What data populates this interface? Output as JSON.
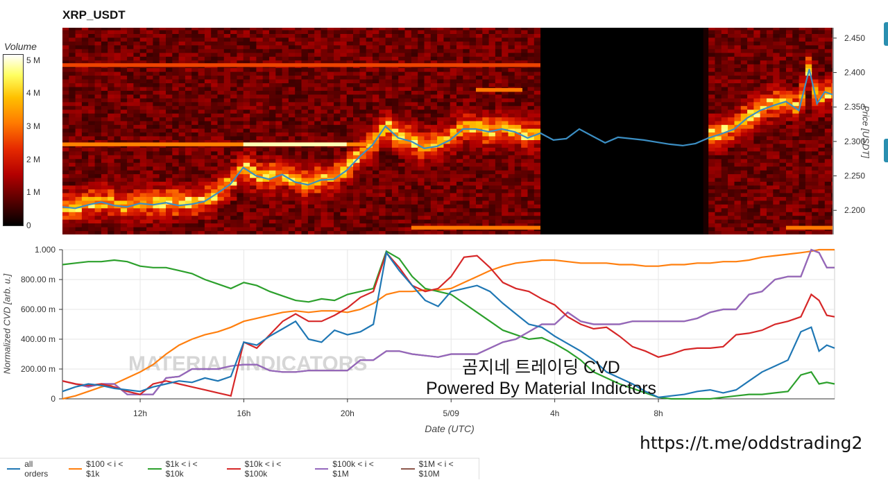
{
  "title": "XRP_USDT",
  "colorbar": {
    "title": "Volume",
    "ticks": [
      "5 M",
      "4 M",
      "3 M",
      "2 M",
      "1 M",
      "0"
    ],
    "tick_values": [
      5,
      4,
      3,
      2,
      1,
      0
    ]
  },
  "price_axis": {
    "label": "Price [USDT]",
    "ticks": [
      "2.200",
      "2.250",
      "2.300",
      "2.350",
      "2.400",
      "2.450"
    ]
  },
  "cvd_axis": {
    "label": "Normalized CVD [arb. u.]",
    "ticks": [
      "0",
      "200.00 m",
      "400.00 m",
      "600.00 m",
      "800.00 m",
      "1.000"
    ]
  },
  "x_axis": {
    "label": "Date (UTC)",
    "ticks": [
      "12h",
      "16h",
      "20h",
      "5/09",
      "4h",
      "8h"
    ]
  },
  "overlay": {
    "line1": "곰지네 트레이딩 CVD",
    "line2": "Powered By Material Indictors"
  },
  "url": "https://t.me/oddstrading2",
  "watermark": "MATERIAL INDICATORS",
  "legend": [
    {
      "label": "all orders",
      "color": "#1f77b4"
    },
    {
      "label": "$100 < i < $1k",
      "color": "#ff7f0e"
    },
    {
      "label": "$1k < i < $10k",
      "color": "#2ca02c"
    },
    {
      "label": "$10k < i < $100k",
      "color": "#d62728"
    },
    {
      "label": "$100k < i < $1M",
      "color": "#9467bd"
    },
    {
      "label": "$1M < i < $10M",
      "color": "#8c564b"
    }
  ],
  "chart_data": [
    {
      "type": "heatmap",
      "title": "XRP_USDT",
      "xlabel": "",
      "ylabel": "Price [USDT]",
      "ylim": [
        2.165,
        2.465
      ],
      "x_range_hours": [
        9.0,
        38.8
      ],
      "colorbar_label": "Volume",
      "colorbar_range": [
        0,
        6000000
      ],
      "price_line": {
        "color": "#3c8fc4",
        "x_hours": [
          9.0,
          9.5,
          10.0,
          10.5,
          11.0,
          11.5,
          12.0,
          12.5,
          13.0,
          13.5,
          14.0,
          14.5,
          15.0,
          15.5,
          16.0,
          16.5,
          17.0,
          17.5,
          18.0,
          18.5,
          19.0,
          19.5,
          20.0,
          20.5,
          21.0,
          21.5,
          22.0,
          22.5,
          23.0,
          23.5,
          24.0,
          24.5,
          25.0,
          25.5,
          26.0,
          26.5,
          27.0,
          27.5,
          28.0,
          28.5,
          29.0,
          29.5,
          30.0,
          30.5,
          31.0,
          31.5,
          32.0,
          32.5,
          33.0,
          33.5,
          34.0,
          34.5,
          35.0,
          35.5,
          36.0,
          36.5,
          37.0,
          37.5,
          37.9,
          38.2,
          38.5,
          38.8
        ],
        "price": [
          2.205,
          2.203,
          2.208,
          2.212,
          2.207,
          2.205,
          2.21,
          2.208,
          2.211,
          2.207,
          2.209,
          2.213,
          2.225,
          2.238,
          2.262,
          2.25,
          2.245,
          2.252,
          2.241,
          2.237,
          2.244,
          2.245,
          2.258,
          2.278,
          2.295,
          2.322,
          2.305,
          2.3,
          2.29,
          2.293,
          2.302,
          2.318,
          2.318,
          2.314,
          2.318,
          2.314,
          2.305,
          2.312,
          2.302,
          2.304,
          2.318,
          2.308,
          2.298,
          2.306,
          2.304,
          2.302,
          2.299,
          2.296,
          2.294,
          2.297,
          2.305,
          2.311,
          2.318,
          2.334,
          2.345,
          2.352,
          2.358,
          2.345,
          2.405,
          2.355,
          2.372,
          2.368
        ]
      },
      "notes": "Volume shown as horizontal price-level bands; blank data gap approx 27.5h-33.8h"
    },
    {
      "type": "line",
      "title": "",
      "xlabel": "Date (UTC)",
      "ylabel": "Normalized CVD [arb. u.]",
      "ylim": [
        0,
        1.0
      ],
      "xlim_hours": [
        9.0,
        38.8
      ],
      "x_tick_labels": [
        "12h",
        "16h",
        "20h",
        "5/09",
        "4h",
        "8h"
      ],
      "x_tick_hours": [
        12,
        16,
        20,
        24,
        28,
        32
      ],
      "x_hours": [
        9.0,
        9.5,
        10.0,
        10.5,
        11.0,
        11.5,
        12.0,
        12.5,
        13.0,
        13.5,
        14.0,
        14.5,
        15.0,
        15.5,
        16.0,
        16.5,
        17.0,
        17.5,
        18.0,
        18.5,
        19.0,
        19.5,
        20.0,
        20.5,
        21.0,
        21.5,
        22.0,
        22.5,
        23.0,
        23.5,
        24.0,
        24.5,
        25.0,
        25.5,
        26.0,
        26.5,
        27.0,
        27.5,
        28.0,
        28.5,
        29.0,
        29.5,
        30.0,
        30.5,
        31.0,
        31.5,
        32.0,
        32.5,
        33.0,
        33.5,
        34.0,
        34.5,
        35.0,
        35.5,
        36.0,
        36.5,
        37.0,
        37.5,
        37.9,
        38.2,
        38.5,
        38.8
      ],
      "series": [
        {
          "name": "all orders",
          "color": "#1f77b4",
          "values": [
            0.05,
            0.08,
            0.1,
            0.09,
            0.07,
            0.06,
            0.05,
            0.08,
            0.1,
            0.12,
            0.11,
            0.14,
            0.12,
            0.15,
            0.38,
            0.36,
            0.42,
            0.47,
            0.52,
            0.4,
            0.38,
            0.46,
            0.43,
            0.45,
            0.5,
            0.98,
            0.86,
            0.76,
            0.66,
            0.62,
            0.72,
            0.74,
            0.76,
            0.72,
            0.64,
            0.57,
            0.5,
            0.48,
            0.42,
            0.37,
            0.32,
            0.26,
            0.18,
            0.14,
            0.1,
            0.05,
            0.01,
            0.02,
            0.03,
            0.05,
            0.06,
            0.04,
            0.06,
            0.12,
            0.18,
            0.22,
            0.26,
            0.45,
            0.48,
            0.32,
            0.36,
            0.34
          ]
        },
        {
          "name": "$100 < i < $1k",
          "color": "#ff7f0e",
          "values": [
            0.0,
            0.02,
            0.05,
            0.08,
            0.1,
            0.14,
            0.18,
            0.23,
            0.3,
            0.36,
            0.4,
            0.43,
            0.45,
            0.48,
            0.52,
            0.54,
            0.56,
            0.58,
            0.59,
            0.58,
            0.59,
            0.59,
            0.58,
            0.6,
            0.64,
            0.7,
            0.72,
            0.72,
            0.73,
            0.73,
            0.74,
            0.78,
            0.82,
            0.86,
            0.89,
            0.91,
            0.92,
            0.93,
            0.93,
            0.92,
            0.91,
            0.91,
            0.91,
            0.9,
            0.9,
            0.89,
            0.89,
            0.9,
            0.9,
            0.91,
            0.91,
            0.92,
            0.92,
            0.93,
            0.95,
            0.96,
            0.97,
            0.98,
            0.99,
            1.0,
            1.0,
            1.0
          ]
        },
        {
          "name": "$1k < i < $10k",
          "color": "#2ca02c",
          "values": [
            0.9,
            0.91,
            0.92,
            0.92,
            0.93,
            0.92,
            0.89,
            0.88,
            0.88,
            0.86,
            0.84,
            0.8,
            0.77,
            0.74,
            0.78,
            0.76,
            0.72,
            0.69,
            0.66,
            0.65,
            0.67,
            0.66,
            0.7,
            0.72,
            0.74,
            0.99,
            0.94,
            0.82,
            0.74,
            0.72,
            0.7,
            0.64,
            0.58,
            0.52,
            0.46,
            0.43,
            0.4,
            0.41,
            0.37,
            0.32,
            0.26,
            0.18,
            0.14,
            0.1,
            0.07,
            0.04,
            0.01,
            0.0,
            0.0,
            0.0,
            0.0,
            0.01,
            0.02,
            0.03,
            0.03,
            0.04,
            0.05,
            0.16,
            0.18,
            0.1,
            0.11,
            0.1
          ]
        },
        {
          "name": "$10k < i < $100k",
          "color": "#d62728",
          "values": [
            0.12,
            0.1,
            0.09,
            0.1,
            0.08,
            0.05,
            0.03,
            0.1,
            0.12,
            0.1,
            0.08,
            0.06,
            0.04,
            0.02,
            0.38,
            0.34,
            0.43,
            0.52,
            0.57,
            0.52,
            0.52,
            0.56,
            0.61,
            0.68,
            0.72,
            0.98,
            0.88,
            0.76,
            0.72,
            0.74,
            0.82,
            0.95,
            0.96,
            0.88,
            0.78,
            0.74,
            0.72,
            0.67,
            0.63,
            0.55,
            0.5,
            0.47,
            0.48,
            0.42,
            0.35,
            0.32,
            0.28,
            0.3,
            0.33,
            0.34,
            0.34,
            0.35,
            0.43,
            0.44,
            0.46,
            0.5,
            0.52,
            0.55,
            0.7,
            0.66,
            0.56,
            0.55
          ]
        },
        {
          "name": "$100k < i < $1M",
          "color": "#9467bd",
          "values": [
            0.12,
            0.1,
            0.08,
            0.1,
            0.1,
            0.03,
            0.03,
            0.03,
            0.14,
            0.15,
            0.2,
            0.2,
            0.2,
            0.22,
            0.23,
            0.23,
            0.19,
            0.18,
            0.18,
            0.19,
            0.19,
            0.19,
            0.19,
            0.26,
            0.26,
            0.32,
            0.32,
            0.3,
            0.29,
            0.28,
            0.3,
            0.3,
            0.3,
            0.34,
            0.38,
            0.4,
            0.45,
            0.5,
            0.5,
            0.58,
            0.52,
            0.5,
            0.5,
            0.5,
            0.52,
            0.52,
            0.52,
            0.52,
            0.52,
            0.54,
            0.58,
            0.6,
            0.6,
            0.7,
            0.72,
            0.8,
            0.82,
            0.82,
            1.0,
            0.98,
            0.88,
            0.88
          ]
        },
        {
          "name": "$1M < i < $10M",
          "color": "#8c564b",
          "values": [
            0.12,
            0.1,
            0.08,
            0.1,
            0.1,
            0.03,
            0.03,
            0.03,
            0.14,
            0.15,
            0.2,
            0.2,
            0.2,
            0.22,
            0.23,
            0.23,
            0.19,
            0.18,
            0.18,
            0.19,
            0.19,
            0.19,
            0.19,
            0.26,
            0.26,
            0.32,
            0.32,
            0.3,
            0.29,
            0.28,
            0.3,
            0.3,
            0.3,
            0.34,
            0.38,
            0.4,
            0.45,
            0.5,
            0.5,
            0.58,
            0.52,
            0.5,
            0.5,
            0.5,
            0.52,
            0.52,
            0.52,
            0.52,
            0.52,
            0.54,
            0.58,
            0.6,
            0.6,
            0.7,
            0.72,
            0.8,
            0.82,
            0.82,
            1.0,
            0.98,
            0.88,
            0.88
          ]
        }
      ]
    }
  ]
}
